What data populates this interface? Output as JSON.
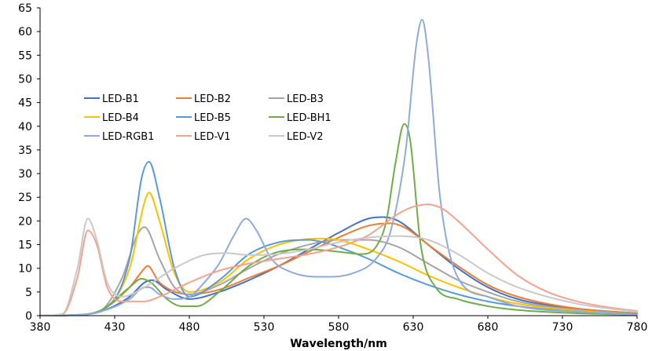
{
  "chart_data": {
    "type": "line",
    "title": "",
    "xlabel": "Wavelength/nm",
    "ylabel": "",
    "xlim": [
      380,
      780
    ],
    "ylim": [
      0,
      65
    ],
    "x_ticks": [
      380,
      430,
      480,
      530,
      580,
      630,
      680,
      730,
      780
    ],
    "y_ticks": [
      0,
      5,
      10,
      15,
      20,
      25,
      30,
      35,
      40,
      45,
      50,
      55,
      60,
      65
    ],
    "grid": false,
    "legend_position": "upper-left inside plot, 3 columns",
    "series": [
      {
        "name": "LED-B1",
        "color": "#4472C4",
        "x": [
          380,
          400,
          420,
          440,
          450,
          455,
          465,
          480,
          500,
          520,
          540,
          560,
          580,
          600,
          610,
          620,
          640,
          660,
          680,
          700,
          740,
          780
        ],
        "y": [
          0,
          0.1,
          0.8,
          4,
          7,
          7.5,
          5.5,
          3.5,
          5,
          7.5,
          10.5,
          14,
          17.5,
          20.5,
          20.8,
          20,
          15,
          10,
          6,
          3.5,
          1.5,
          0.5
        ]
      },
      {
        "name": "LED-B2",
        "color": "#ED7D31",
        "x": [
          380,
          400,
          420,
          440,
          450,
          452,
          460,
          480,
          500,
          520,
          540,
          560,
          580,
          600,
          615,
          625,
          640,
          660,
          680,
          700,
          740,
          780
        ],
        "y": [
          0,
          0.1,
          1,
          6,
          10,
          10.5,
          7,
          4.5,
          5.5,
          8,
          10.5,
          13.5,
          16.5,
          19,
          19.5,
          18.5,
          15,
          10.5,
          6.5,
          4,
          1.5,
          0.5
        ]
      },
      {
        "name": "LED-B3",
        "color": "#A5A5A5",
        "x": [
          380,
          400,
          420,
          435,
          445,
          450,
          460,
          470,
          480,
          500,
          520,
          540,
          560,
          580,
          600,
          620,
          640,
          660,
          680,
          700,
          740,
          780
        ],
        "y": [
          0,
          0.1,
          1,
          8,
          17,
          18.7,
          12,
          6,
          4.5,
          6.5,
          10,
          13,
          15,
          16,
          16,
          14.5,
          11,
          7.5,
          5,
          3,
          1.2,
          0.4
        ]
      },
      {
        "name": "LED-B4",
        "color": "#FFC000",
        "x": [
          380,
          400,
          420,
          440,
          450,
          453,
          460,
          470,
          480,
          500,
          520,
          540,
          560,
          570,
          580,
          600,
          620,
          640,
          660,
          680,
          700,
          740,
          780
        ],
        "y": [
          0,
          0.1,
          1,
          10,
          24,
          26,
          20,
          9,
          5,
          7,
          12,
          15,
          16.2,
          16.3,
          16,
          14,
          11.5,
          8.5,
          6,
          4,
          2.5,
          1,
          0.3
        ]
      },
      {
        "name": "LED-B5",
        "color": "#5B9BD5",
        "x": [
          380,
          400,
          420,
          440,
          448,
          453,
          460,
          470,
          480,
          500,
          520,
          540,
          560,
          570,
          580,
          600,
          620,
          640,
          660,
          680,
          700,
          740,
          780
        ],
        "y": [
          0,
          0.1,
          1,
          12,
          29,
          32.5,
          25,
          10,
          4,
          7.5,
          13,
          15.5,
          16,
          15.5,
          14.5,
          12,
          9,
          6.5,
          4.5,
          3,
          2,
          0.8,
          0.3
        ]
      },
      {
        "name": "LED-BH1",
        "color": "#70AD47",
        "x": [
          380,
          400,
          420,
          440,
          448,
          455,
          465,
          475,
          485,
          500,
          520,
          540,
          560,
          580,
          595,
          605,
          612,
          618,
          624,
          628,
          635,
          645,
          660,
          680,
          700,
          740,
          780
        ],
        "y": [
          0,
          0.1,
          1,
          6,
          7.8,
          6.8,
          3.5,
          2,
          2,
          5,
          10.5,
          13.5,
          14,
          13.5,
          13,
          14.5,
          20,
          32,
          40.5,
          37,
          15,
          6,
          3.5,
          2,
          1.2,
          0.5,
          0.2
        ]
      },
      {
        "name": "LED-RGB1",
        "color": "#8FAADC",
        "x": [
          380,
          400,
          420,
          440,
          450,
          453,
          460,
          470,
          480,
          490,
          500,
          510,
          518,
          525,
          535,
          550,
          570,
          590,
          605,
          615,
          625,
          632,
          636,
          640,
          648,
          660,
          680,
          700,
          740,
          780
        ],
        "y": [
          0,
          0.1,
          0.8,
          3.5,
          6,
          6,
          4.5,
          3.5,
          4,
          7,
          11,
          17,
          20.5,
          18,
          12,
          9,
          8.2,
          9,
          12,
          18,
          35,
          57,
          62.5,
          55,
          25,
          8,
          4,
          2,
          0.8,
          0.2
        ]
      },
      {
        "name": "LED-V1",
        "color": "#F4A28C",
        "x": [
          380,
          395,
          405,
          412,
          418,
          425,
          435,
          450,
          460,
          480,
          500,
          520,
          540,
          560,
          580,
          600,
          620,
          630,
          640,
          650,
          660,
          680,
          700,
          720,
          740,
          760,
          780
        ],
        "y": [
          0,
          0.3,
          8,
          18,
          15,
          6,
          3,
          3,
          4,
          7,
          9.5,
          11,
          12,
          13,
          14.5,
          17,
          21.5,
          23,
          23.5,
          22.5,
          20,
          14,
          8.5,
          5,
          3,
          1.8,
          1
        ]
      },
      {
        "name": "LED-V2",
        "color": "#C9C9C9",
        "x": [
          380,
          395,
          405,
          412,
          418,
          425,
          435,
          450,
          470,
          490,
          505,
          520,
          540,
          560,
          580,
          600,
          620,
          640,
          660,
          680,
          700,
          740,
          780
        ],
        "y": [
          0,
          0.4,
          10,
          20.5,
          16,
          7,
          4,
          6,
          10,
          12.8,
          13.2,
          12.8,
          13,
          14,
          15.5,
          16.5,
          16.8,
          16,
          13,
          9,
          6,
          2.5,
          0.8
        ]
      }
    ]
  }
}
